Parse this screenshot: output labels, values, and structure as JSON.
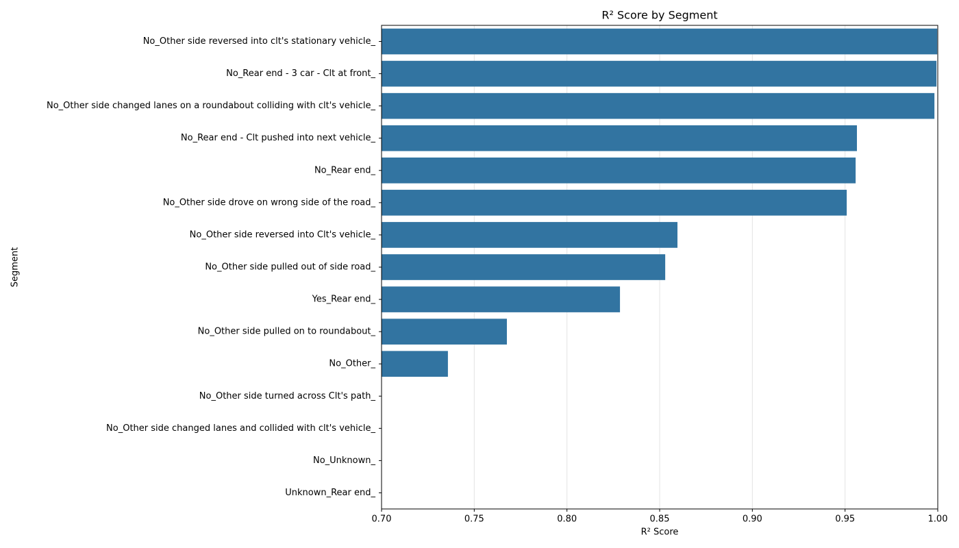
{
  "chart_data": {
    "type": "barh",
    "title": "R² Score by Segment",
    "x_label": "R² Score",
    "y_label": "Segment",
    "categories": [
      "No_Other side reversed into clt's stationary vehicle_",
      "No_Rear end - 3 car - Clt at front_",
      "No_Other side changed lanes on a roundabout colliding with clt's vehicle_",
      "No_Rear end - Clt pushed into next vehicle_",
      "No_Rear end_",
      "No_Other side drove on wrong side of the road_",
      "No_Other side reversed into Clt's vehicle_",
      "No_Other side pulled out of side road_",
      "Yes_Rear end_",
      "No_Other side pulled on to roundabout_",
      "No_Other_",
      "No_Other side turned across Clt's path_",
      "No_Other side changed lanes and collided with clt's vehicle_",
      "No_Unknown_",
      "Unknown_Rear end_"
    ],
    "values": [
      0.9997,
      0.9993,
      0.9982,
      0.9564,
      0.9557,
      0.9509,
      0.8596,
      0.853,
      0.8286,
      0.7676,
      0.7358,
      null,
      null,
      null,
      null
    ],
    "color": "#3274a1",
    "xlim": [
      0.7,
      1.0
    ],
    "xticks": [
      {
        "value": 0.7,
        "label": "0.70"
      },
      {
        "value": 0.75,
        "label": "0.75"
      },
      {
        "value": 0.8,
        "label": "0.80"
      },
      {
        "value": 0.85,
        "label": "0.85"
      },
      {
        "value": 0.9,
        "label": "0.90"
      },
      {
        "value": 0.95,
        "label": "0.95"
      },
      {
        "value": 1.0,
        "label": "1.00"
      }
    ],
    "grid": true
  }
}
